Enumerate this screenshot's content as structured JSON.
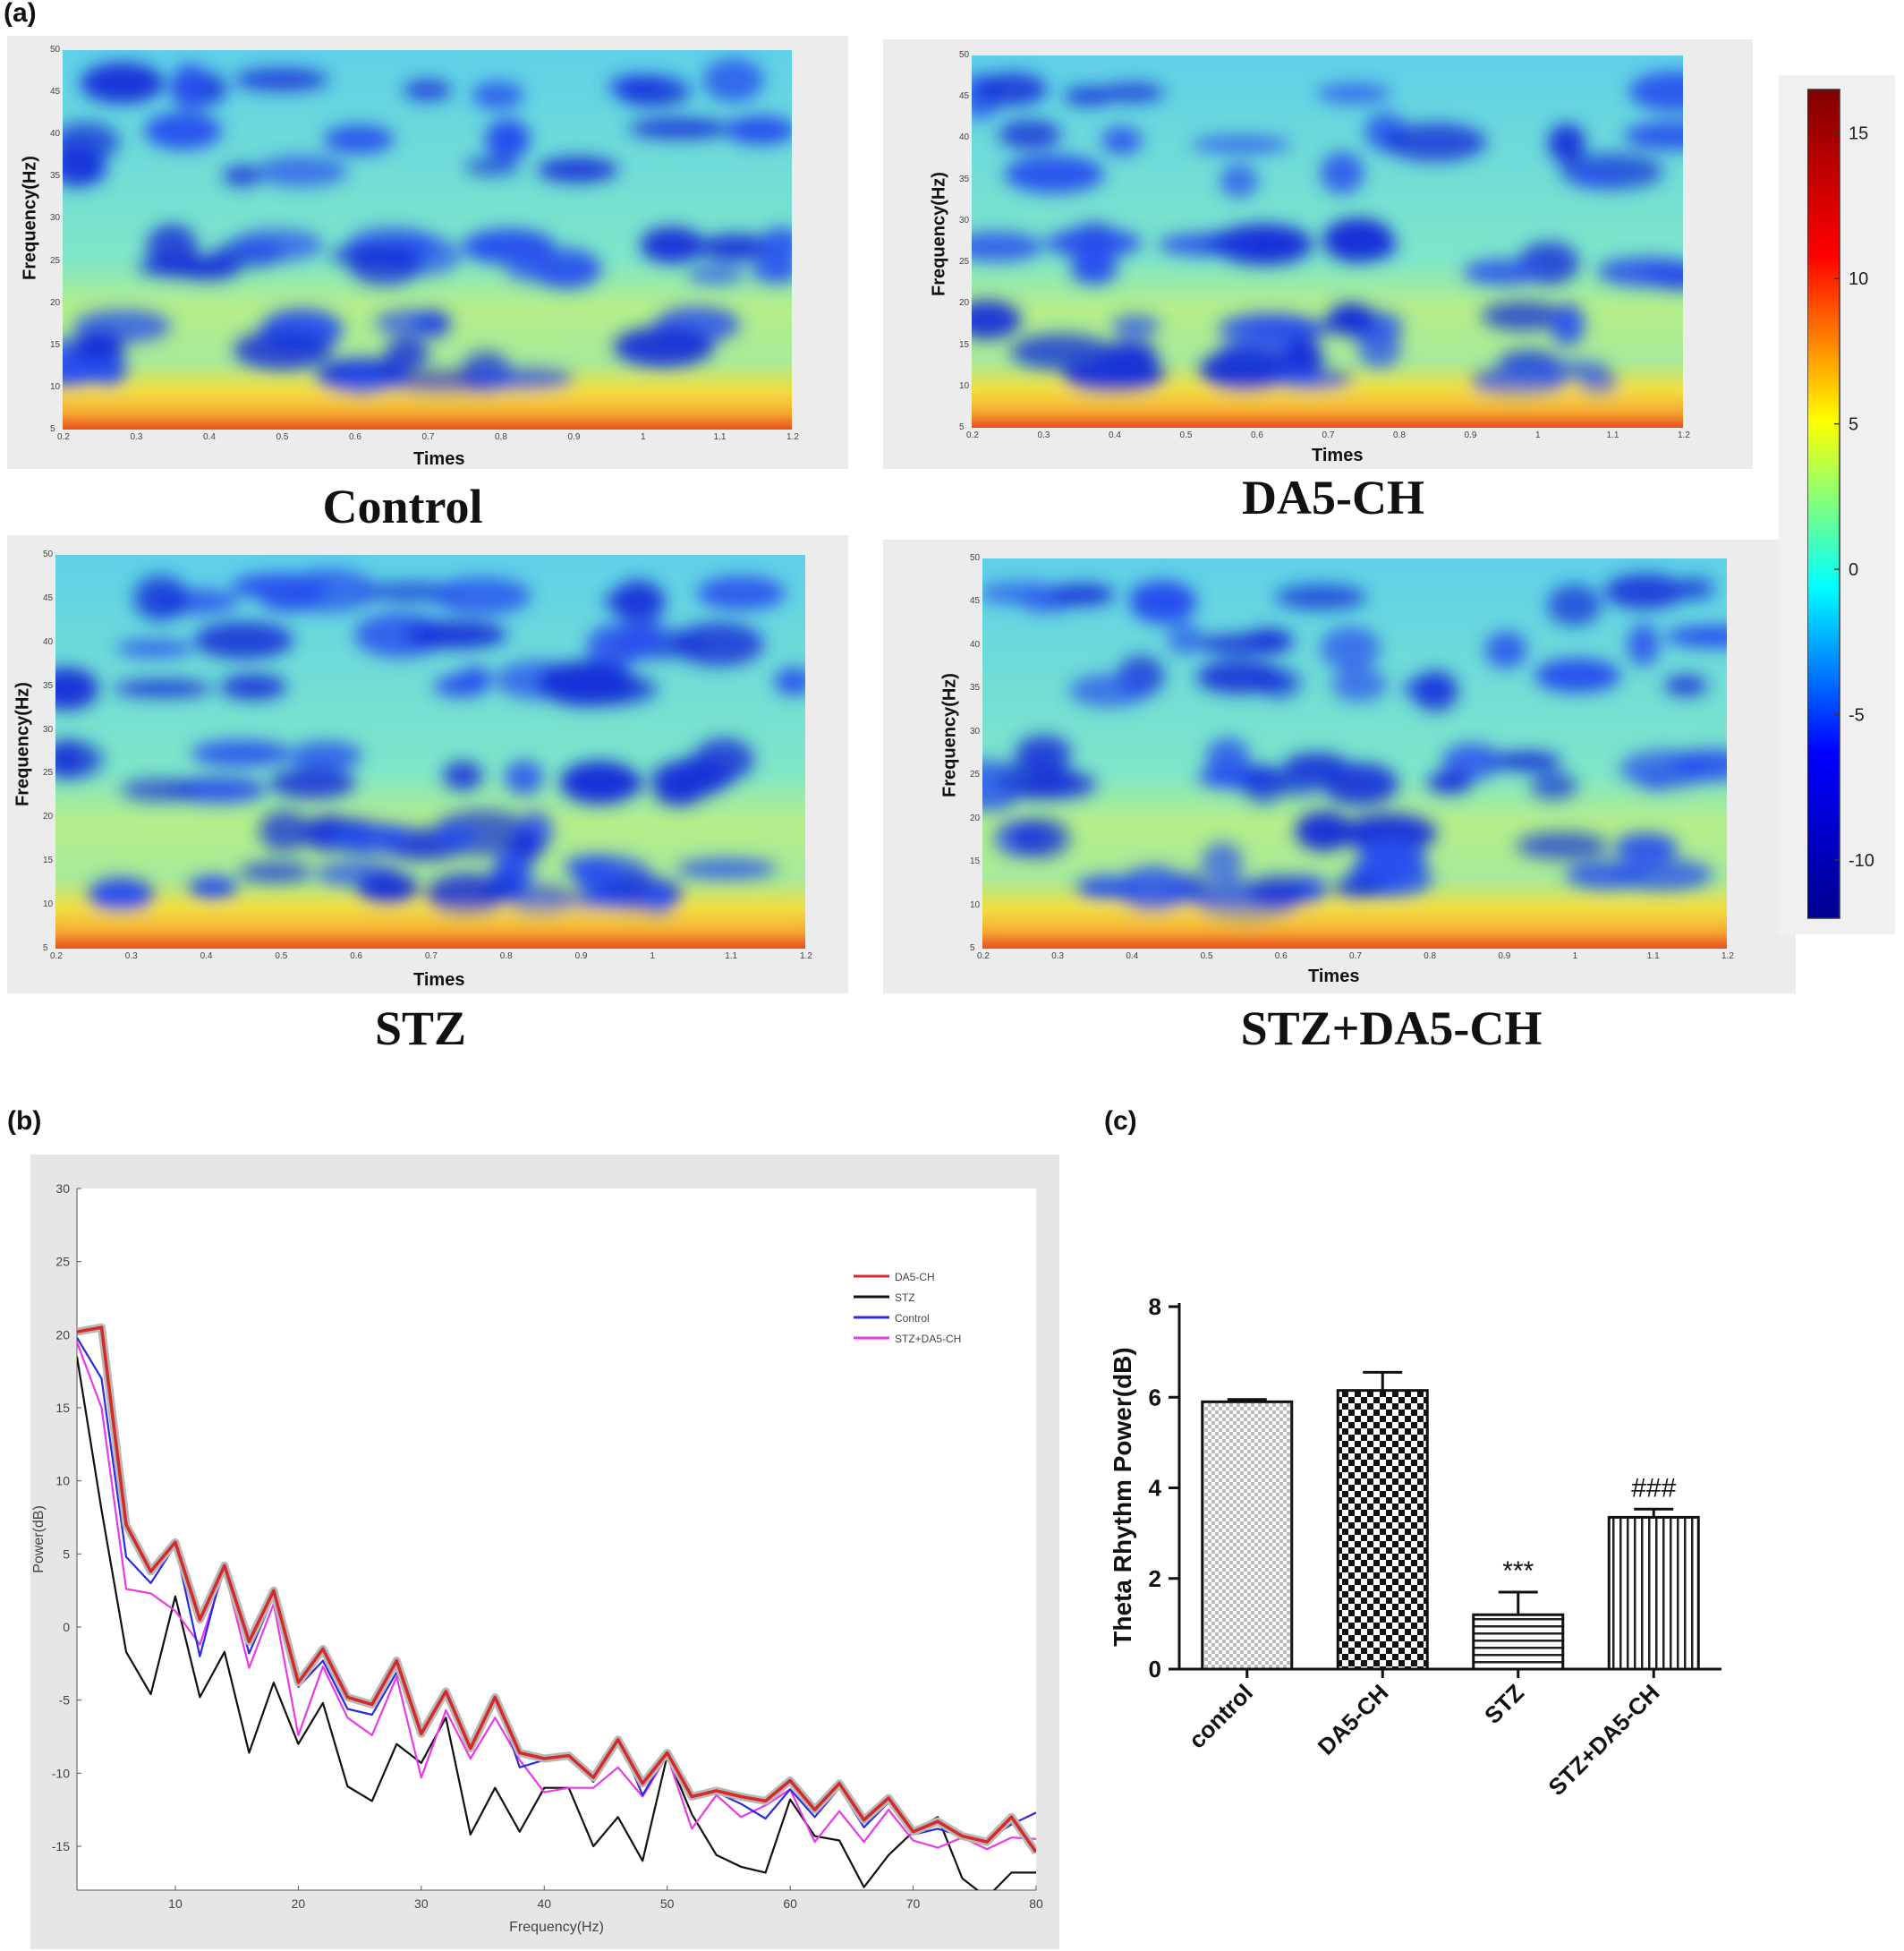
{
  "panel_labels": {
    "a": "(a)",
    "b": "(b)",
    "c": "(c)"
  },
  "spectrograms": [
    {
      "title": "Control",
      "xlabel": "Times",
      "ylabel": "Frequency(Hz)"
    },
    {
      "title": "DA5-CH",
      "xlabel": "Times",
      "ylabel": "Frequency(Hz)"
    },
    {
      "title": "STZ",
      "xlabel": "Times",
      "ylabel": "Frequency(Hz)"
    },
    {
      "title": "STZ+DA5-CH",
      "xlabel": "Times",
      "ylabel": "Frequency(Hz)"
    }
  ],
  "spectrogram_axes": {
    "x_ticks": [
      "0.2",
      "0.3",
      "0.4",
      "0.5",
      "0.6",
      "0.7",
      "0.8",
      "0.9",
      "1",
      "1.1",
      "1.2"
    ],
    "y_ticks": [
      "50",
      "45",
      "40",
      "35",
      "30",
      "25",
      "20",
      "15",
      "10",
      "5"
    ]
  },
  "colorbar": {
    "ticks": [
      "15",
      "10",
      "5",
      "0",
      "-5",
      "-10"
    ],
    "range": [
      -12,
      16.5
    ],
    "colormap": [
      "#00008f",
      "#0000ff",
      "#00ffff",
      "#ffff00",
      "#ff0000",
      "#800000"
    ]
  },
  "chart_data": [
    {
      "type": "line",
      "panel": "(b)",
      "xlabel": "Frequency(Hz)",
      "ylabel": "Power(dB)",
      "xlim": [
        2,
        80
      ],
      "ylim": [
        -18,
        30
      ],
      "x_ticks": [
        "10",
        "20",
        "30",
        "40",
        "50",
        "60",
        "70",
        "80"
      ],
      "y_ticks": [
        "30",
        "25",
        "20",
        "15",
        "10",
        "5",
        "0",
        "-5",
        "-10",
        "-15"
      ],
      "legend_position": "top-right",
      "x": [
        2,
        4,
        6,
        8,
        10,
        12,
        14,
        16,
        18,
        20,
        22,
        24,
        26,
        28,
        30,
        32,
        34,
        36,
        38,
        40,
        42,
        44,
        46,
        48,
        50,
        52,
        54,
        56,
        58,
        60,
        62,
        64,
        66,
        68,
        70,
        72,
        74,
        76,
        78,
        80
      ],
      "series": [
        {
          "name": "DA5-CH",
          "color": "#d42a2a",
          "values": [
            20.2,
            20.5,
            7.0,
            3.8,
            5.8,
            0.5,
            4.2,
            -1.0,
            2.5,
            -3.8,
            -1.5,
            -4.8,
            -5.3,
            -2.3,
            -7.3,
            -4.4,
            -8.3,
            -4.8,
            -8.6,
            -9.0,
            -8.8,
            -10.3,
            -7.7,
            -10.7,
            -8.6,
            -11.6,
            -11.2,
            -11.6,
            -11.9,
            -10.5,
            -12.5,
            -10.7,
            -13.2,
            -11.7,
            -14.0,
            -13.3,
            -14.3,
            -14.7,
            -13.0,
            -15.4
          ]
        },
        {
          "name": "STZ",
          "color": "#111111",
          "values": [
            18.5,
            8.0,
            -1.7,
            -4.6,
            2.1,
            -4.8,
            -1.7,
            -8.6,
            -3.8,
            -8.0,
            -5.2,
            -10.9,
            -11.9,
            -8.0,
            -9.3,
            -6.2,
            -14.2,
            -11.0,
            -14.0,
            -11.0,
            -11.0,
            -15.0,
            -13.0,
            -16.0,
            -8.8,
            -12.8,
            -15.6,
            -16.4,
            -16.8,
            -11.8,
            -14.3,
            -14.6,
            -17.8,
            -15.6,
            -14.0,
            -13.0,
            -17.2,
            -18.5,
            -16.8,
            -16.8
          ]
        },
        {
          "name": "Control",
          "color": "#2b2bdb",
          "values": [
            19.8,
            17.0,
            4.8,
            3.0,
            5.6,
            -2.0,
            4.4,
            -1.8,
            2.1,
            -4.1,
            -2.3,
            -5.6,
            -6.0,
            -3.1,
            -7.1,
            -4.3,
            -8.1,
            -4.6,
            -9.6,
            -9.1,
            -8.8,
            -10.6,
            -7.5,
            -11.5,
            -8.6,
            -11.6,
            -11.3,
            -12.1,
            -13.1,
            -11.1,
            -13.0,
            -11.0,
            -13.7,
            -12.0,
            -14.2,
            -13.8,
            -14.3,
            -14.6,
            -13.5,
            -12.7
          ]
        },
        {
          "name": "STZ+DA5-CH",
          "color": "#e83ae8",
          "values": [
            19.5,
            15.0,
            2.6,
            2.3,
            1.1,
            -1.2,
            3.9,
            -2.8,
            1.6,
            -7.4,
            -2.7,
            -6.2,
            -7.4,
            -3.4,
            -10.3,
            -5.7,
            -9.0,
            -6.2,
            -9.1,
            -11.3,
            -11.0,
            -11.0,
            -9.6,
            -11.6,
            -8.8,
            -13.8,
            -11.5,
            -13.0,
            -12.2,
            -11.1,
            -14.7,
            -12.6,
            -14.7,
            -12.5,
            -14.6,
            -15.1,
            -14.4,
            -15.2,
            -14.4,
            -14.5
          ]
        }
      ]
    },
    {
      "type": "bar",
      "panel": "(c)",
      "ylabel": "Theta Rhythm Power(dB)",
      "ylim": [
        0,
        8
      ],
      "y_ticks": [
        "0",
        "2",
        "4",
        "6",
        "8"
      ],
      "categories": [
        "control",
        "DA5-CH",
        "STZ",
        "STZ+DA5-CH"
      ],
      "values": [
        5.9,
        6.15,
        1.2,
        3.35
      ],
      "errors": [
        0.05,
        0.4,
        0.5,
        0.18
      ],
      "significance": [
        "",
        "",
        "***",
        "###"
      ]
    }
  ]
}
